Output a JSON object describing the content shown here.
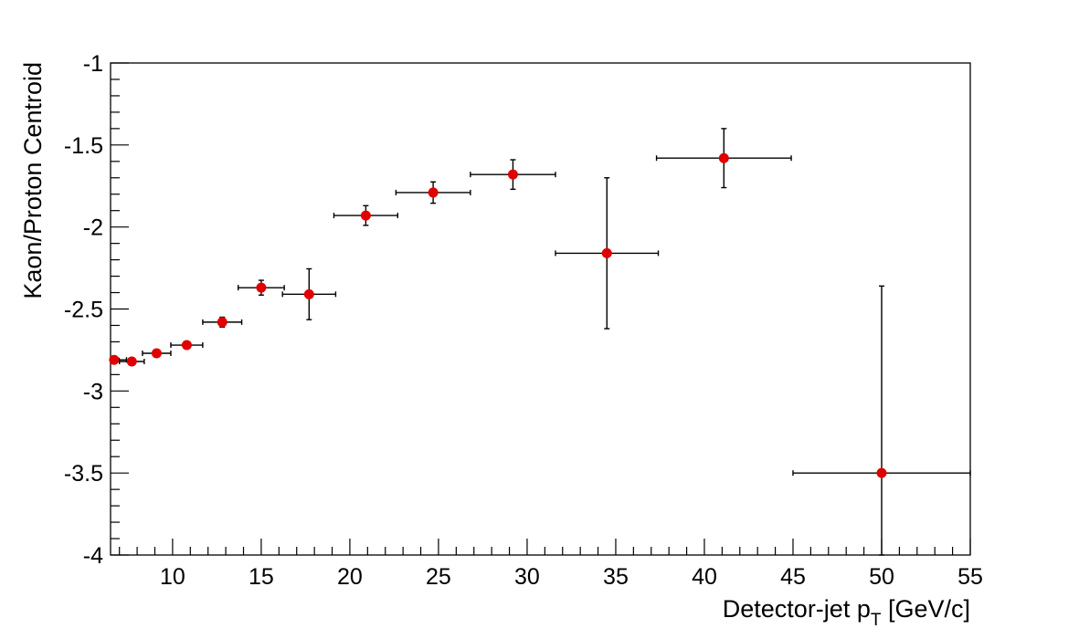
{
  "chart_data": {
    "type": "scatter",
    "title": "",
    "xlabel": {
      "main": "Detector-jet p",
      "subscript": "T",
      "suffix": " [GeV/c]"
    },
    "ylabel": "Kaon/Proton Centroid",
    "xlim": [
      6.5,
      55
    ],
    "ylim": [
      -4,
      -1
    ],
    "x_ticks": [
      10,
      15,
      20,
      25,
      30,
      35,
      40,
      45,
      50,
      55
    ],
    "x_tick_labels": [
      "10",
      "15",
      "20",
      "25",
      "30",
      "35",
      "40",
      "45",
      "50",
      "55"
    ],
    "y_ticks": [
      -4,
      -3.5,
      -3,
      -2.5,
      -2,
      -1.5,
      -1
    ],
    "y_tick_labels": [
      "-4",
      "-3.5",
      "-3",
      "-2.5",
      "-2",
      "-1.5",
      "-1"
    ],
    "grid": false,
    "marker_color": "#e00000",
    "points": [
      {
        "x": 6.7,
        "y": -2.81,
        "xerr_low": 0.7,
        "xerr_high": 0.7,
        "yerr": 0.0
      },
      {
        "x": 7.7,
        "y": -2.82,
        "xerr_low": 0.7,
        "xerr_high": 0.7,
        "yerr": 0.0
      },
      {
        "x": 9.1,
        "y": -2.77,
        "xerr_low": 0.8,
        "xerr_high": 0.8,
        "yerr": 0.0
      },
      {
        "x": 10.8,
        "y": -2.72,
        "xerr_low": 0.9,
        "xerr_high": 0.9,
        "yerr": 0.0
      },
      {
        "x": 12.8,
        "y": -2.58,
        "xerr_low": 1.1,
        "xerr_high": 1.1,
        "yerr": 0.03
      },
      {
        "x": 15.0,
        "y": -2.37,
        "xerr_low": 1.3,
        "xerr_high": 1.3,
        "yerr": 0.045
      },
      {
        "x": 17.7,
        "y": -2.41,
        "xerr_low": 1.5,
        "xerr_high": 1.5,
        "yerr": 0.155
      },
      {
        "x": 20.9,
        "y": -1.93,
        "xerr_low": 1.8,
        "xerr_high": 1.8,
        "yerr": 0.06
      },
      {
        "x": 24.7,
        "y": -1.79,
        "xerr_low": 2.1,
        "xerr_high": 2.1,
        "yerr": 0.065
      },
      {
        "x": 29.2,
        "y": -1.68,
        "xerr_low": 2.4,
        "xerr_high": 2.4,
        "yerr": 0.09
      },
      {
        "x": 34.5,
        "y": -2.16,
        "xerr_low": 2.9,
        "xerr_high": 2.9,
        "yerr": 0.46
      },
      {
        "x": 41.1,
        "y": -1.58,
        "xerr_low": 3.8,
        "xerr_high": 3.8,
        "yerr": 0.18
      },
      {
        "x": 50.0,
        "y": -3.5,
        "xerr_low": 5.0,
        "xerr_high": 5.0,
        "yerr_high": 1.14,
        "yerr_low": 0.5
      }
    ]
  }
}
